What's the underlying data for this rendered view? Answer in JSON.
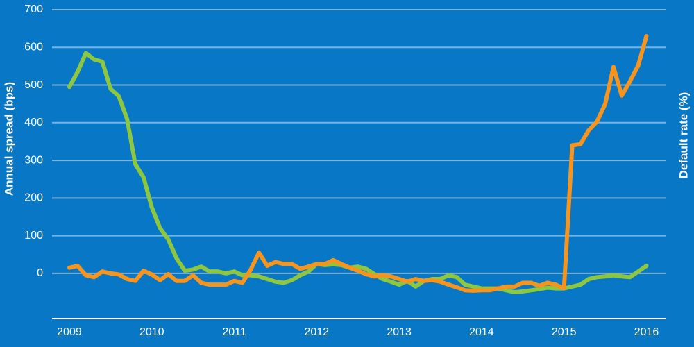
{
  "chart_data": {
    "type": "line",
    "ylabel": "Annual spread (bps)",
    "y2label": "Default rate (%)",
    "x": [
      2009.0,
      2009.1,
      2009.2,
      2009.3,
      2009.4,
      2009.5,
      2009.6,
      2009.7,
      2009.8,
      2009.9,
      2010.0,
      2010.1,
      2010.2,
      2010.3,
      2010.4,
      2010.5,
      2010.6,
      2010.7,
      2010.8,
      2010.9,
      2011.0,
      2011.1,
      2011.2,
      2011.3,
      2011.4,
      2011.5,
      2011.6,
      2011.7,
      2011.8,
      2011.9,
      2012.0,
      2012.1,
      2012.2,
      2012.3,
      2012.4,
      2012.5,
      2012.6,
      2012.7,
      2012.8,
      2012.9,
      2013.0,
      2013.1,
      2013.2,
      2013.3,
      2013.4,
      2013.5,
      2013.6,
      2013.7,
      2013.8,
      2013.9,
      2014.0,
      2014.1,
      2014.2,
      2014.3,
      2014.4,
      2014.5,
      2014.6,
      2014.7,
      2014.8,
      2014.9,
      2015.0,
      2015.1,
      2015.2,
      2015.3,
      2015.4,
      2015.5,
      2015.6,
      2015.7,
      2015.8,
      2015.9,
      2016.0
    ],
    "series": [
      {
        "color": "#8dc63f",
        "values": [
          495,
          535,
          585,
          568,
          562,
          490,
          470,
          410,
          290,
          255,
          175,
          120,
          90,
          40,
          7,
          10,
          18,
          5,
          5,
          0,
          5,
          -5,
          -5,
          -8,
          -15,
          -22,
          -25,
          -18,
          -5,
          5,
          25,
          22,
          24,
          22,
          15,
          18,
          12,
          -2,
          -15,
          -22,
          -30,
          -20,
          -35,
          -20,
          -15,
          -15,
          -5,
          -10,
          -30,
          -35,
          -40,
          -40,
          -40,
          -45,
          -50,
          -48,
          -45,
          -42,
          -38,
          -40,
          -40,
          -35,
          -30,
          -15,
          -10,
          -8,
          -5,
          -8,
          -10,
          5,
          20
        ]
      },
      {
        "color": "#f7941d",
        "values": [
          15,
          20,
          -5,
          -10,
          5,
          0,
          -3,
          -15,
          -20,
          7,
          -3,
          -18,
          -2,
          -20,
          -20,
          -5,
          -25,
          -30,
          -30,
          -30,
          -20,
          -25,
          10,
          55,
          20,
          30,
          25,
          25,
          12,
          18,
          25,
          25,
          35,
          25,
          15,
          7,
          -2,
          -8,
          -5,
          -8,
          -15,
          -22,
          -15,
          -20,
          -18,
          -22,
          -30,
          -37,
          -45,
          -46,
          -45,
          -45,
          -40,
          -35,
          -35,
          -25,
          -25,
          -33,
          -25,
          -30,
          -40,
          340,
          343,
          380,
          403,
          450,
          548,
          472,
          510,
          552,
          630
        ]
      }
    ],
    "xlim": [
      2008.79,
      2016.24
    ],
    "xticks": [
      2009,
      2010,
      2011,
      2012,
      2013,
      2014,
      2015,
      2016
    ],
    "ylim": [
      -120,
      700
    ],
    "yticks": [
      0,
      100,
      200,
      300,
      400,
      500,
      600,
      700
    ],
    "grid": true
  }
}
